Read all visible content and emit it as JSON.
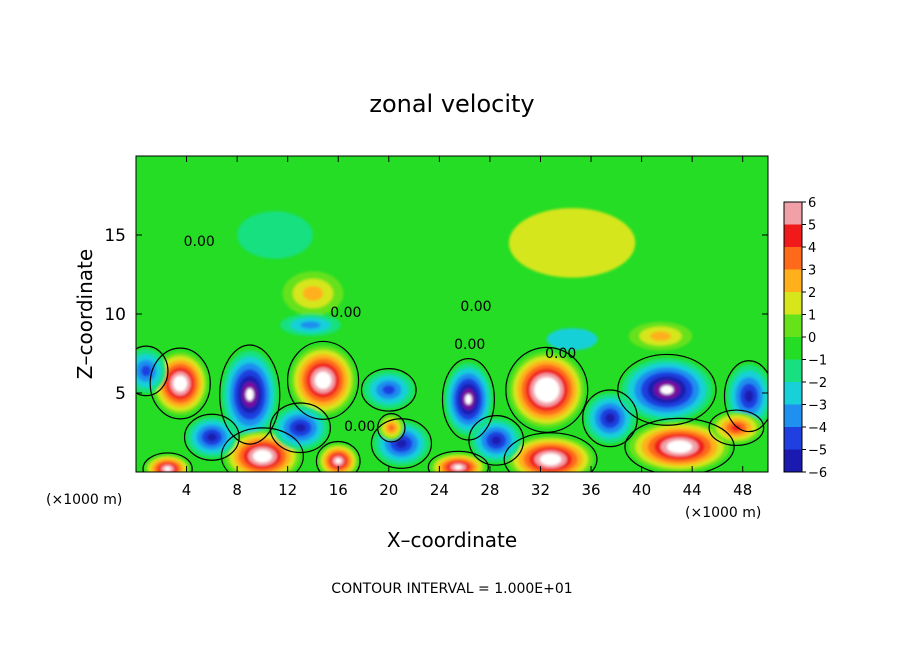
{
  "chart_data": {
    "type": "heatmap",
    "title": "zonal velocity",
    "xlabel": "X–coordinate",
    "ylabel": "Z–coordinate",
    "x_unit_left": "(×1000 m)",
    "x_unit_right": "(×1000 m)",
    "footer": "CONTOUR INTERVAL = 1.000E+01",
    "xlim": [
      0,
      50
    ],
    "ylim": [
      0,
      20
    ],
    "x_ticks": [
      "4",
      "8",
      "12",
      "16",
      "20",
      "24",
      "28",
      "32",
      "36",
      "40",
      "44",
      "48"
    ],
    "y_ticks": [
      "5",
      "10",
      "15"
    ],
    "colorbar_ticks": [
      "6",
      "5",
      "4",
      "3",
      "2",
      "1",
      "0",
      "−1",
      "−2",
      "−3",
      "−4",
      "−5",
      "−6"
    ],
    "colorbar_range": [
      -6,
      6
    ],
    "colors": {
      "-6": "#7a0fa0",
      "-5": "#1a1ab0",
      "-4": "#1f3fe0",
      "-3": "#1f8ff0",
      "-2": "#18d0d8",
      "-1": "#18e080",
      "0": "#25dd25",
      "1": "#66e21a",
      "2": "#d6e61a",
      "3": "#ffb01a",
      "4": "#ff6a1a",
      "5": "#f01a1a",
      "6": "#f2a0a8",
      "over": "#ffffff",
      "contour": "#000000"
    },
    "contour_labels": [
      {
        "text": "0.00",
        "x": 5.0,
        "z": 14.3
      },
      {
        "text": "0.00",
        "x": 16.6,
        "z": 9.8
      },
      {
        "text": "0.00",
        "x": 26.9,
        "z": 10.2
      },
      {
        "text": "0.00",
        "x": 26.4,
        "z": 7.8
      },
      {
        "text": "0.00",
        "x": 33.6,
        "z": 7.2
      },
      {
        "text": "0.00",
        "x": 17.7,
        "z": 2.6
      }
    ],
    "features": [
      {
        "sign": "positive",
        "x": 3.5,
        "z": 5.6,
        "rx": 2.2,
        "rz": 2.0,
        "peak": 8
      },
      {
        "sign": "negative",
        "x": 9.0,
        "z": 4.9,
        "rx": 2.2,
        "rz": 2.8,
        "peak": -7
      },
      {
        "sign": "positive",
        "x": 14.8,
        "z": 5.8,
        "rx": 2.6,
        "rz": 2.2,
        "peak": 8
      },
      {
        "sign": "negative",
        "x": 26.3,
        "z": 4.6,
        "rx": 1.9,
        "rz": 2.3,
        "peak": -7
      },
      {
        "sign": "positive",
        "x": 32.5,
        "z": 5.2,
        "rx": 3.0,
        "rz": 2.4,
        "peak": 9
      },
      {
        "sign": "negative",
        "x": 42.0,
        "z": 5.2,
        "rx": 3.6,
        "rz": 2.0,
        "peak": -7
      },
      {
        "sign": "positive",
        "x": 10.0,
        "z": 1.0,
        "rx": 3.0,
        "rz": 1.6,
        "peak": 8
      },
      {
        "sign": "positive",
        "x": 16.0,
        "z": 0.7,
        "rx": 1.6,
        "rz": 1.1,
        "peak": 7
      },
      {
        "sign": "positive",
        "x": 32.8,
        "z": 0.8,
        "rx": 3.4,
        "rz": 1.5,
        "peak": 8
      },
      {
        "sign": "positive",
        "x": 43.0,
        "z": 1.6,
        "rx": 4.0,
        "rz": 1.6,
        "peak": 8
      },
      {
        "sign": "positive",
        "x": 2.5,
        "z": 0.2,
        "rx": 1.8,
        "rz": 0.9,
        "peak": 7
      },
      {
        "sign": "positive",
        "x": 25.5,
        "z": 0.3,
        "rx": 2.2,
        "rz": 0.9,
        "peak": 7
      },
      {
        "sign": "negative",
        "x": 6.0,
        "z": 2.2,
        "rx": 2.0,
        "rz": 1.3,
        "peak": -5
      },
      {
        "sign": "negative",
        "x": 13.0,
        "z": 2.8,
        "rx": 2.2,
        "rz": 1.4,
        "peak": -5
      },
      {
        "sign": "negative",
        "x": 21.0,
        "z": 1.8,
        "rx": 2.2,
        "rz": 1.4,
        "peak": -5
      },
      {
        "sign": "negative",
        "x": 28.5,
        "z": 2.0,
        "rx": 2.0,
        "rz": 1.4,
        "peak": -5
      },
      {
        "sign": "negative",
        "x": 37.5,
        "z": 3.4,
        "rx": 2.0,
        "rz": 1.6,
        "peak": -5
      },
      {
        "sign": "negative",
        "x": 48.5,
        "z": 4.8,
        "rx": 1.8,
        "rz": 2.0,
        "peak": -5
      },
      {
        "sign": "negative",
        "x": 0.8,
        "z": 6.4,
        "rx": 1.6,
        "rz": 1.4,
        "peak": -4
      },
      {
        "sign": "negative",
        "x": 20.0,
        "z": 5.2,
        "rx": 2.0,
        "rz": 1.2,
        "peak": -4
      },
      {
        "sign": "positive",
        "x": 20.2,
        "z": 2.8,
        "rx": 1.0,
        "rz": 0.8,
        "peak": 4
      },
      {
        "sign": "positive",
        "x": 47.5,
        "z": 2.8,
        "rx": 2.0,
        "rz": 1.0,
        "peak": 5
      },
      {
        "sign": "positive",
        "x": 14.0,
        "z": 11.3,
        "rx": 2.4,
        "rz": 1.4,
        "peak": 3
      },
      {
        "sign": "positive",
        "x": 41.5,
        "z": 8.6,
        "rx": 2.5,
        "rz": 0.9,
        "peak": 3
      },
      {
        "sign": "negative",
        "x": 13.8,
        "z": 9.3,
        "rx": 2.4,
        "rz": 0.7,
        "peak": -3
      },
      {
        "sign": "negative",
        "x": 34.5,
        "z": 8.4,
        "rx": 2.0,
        "rz": 0.7,
        "peak": -2
      },
      {
        "sign": "negative",
        "x": 11.0,
        "z": 15.0,
        "rx": 3.0,
        "rz": 1.5,
        "peak": -1.2
      },
      {
        "sign": "positive",
        "x": 34.5,
        "z": 14.5,
        "rx": 5.0,
        "rz": 2.2,
        "peak": 1.6
      }
    ]
  }
}
